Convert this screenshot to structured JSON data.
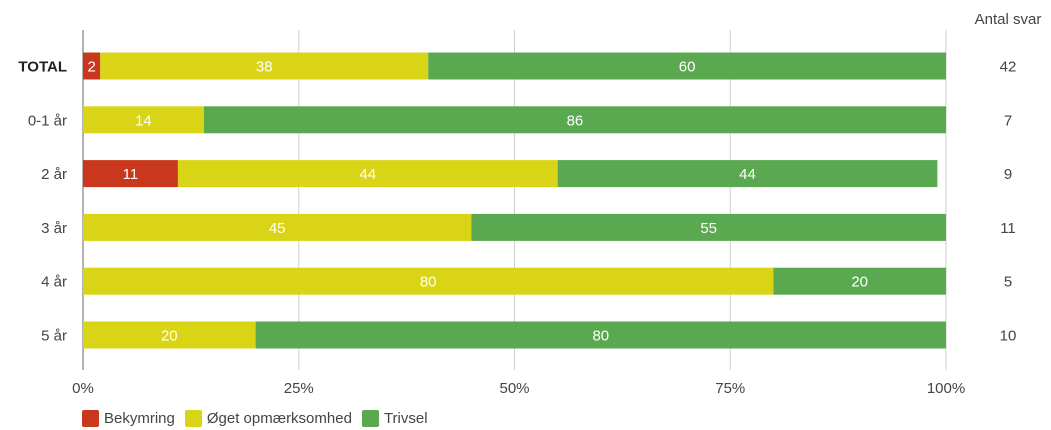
{
  "chart_data": {
    "type": "bar",
    "orientation": "horizontal",
    "stacked": true,
    "categories": [
      "TOTAL",
      "0-1 år",
      "2 år",
      "3 år",
      "4 år",
      "5 år"
    ],
    "series": [
      {
        "name": "Bekymring",
        "color": "#c9381c",
        "values": [
          2,
          0,
          11,
          0,
          0,
          0
        ]
      },
      {
        "name": "Øget opmærksomhed",
        "color": "#d9d516",
        "values": [
          38,
          14,
          44,
          45,
          80,
          20
        ]
      },
      {
        "name": "Trivsel",
        "color": "#5aa84f",
        "values": [
          60,
          86,
          44,
          55,
          20,
          80
        ]
      }
    ],
    "x_ticks": [
      "0%",
      "25%",
      "50%",
      "75%",
      "100%"
    ],
    "xlim": [
      0,
      100
    ],
    "counts_header": "Antal svar",
    "counts": [
      "42",
      "7",
      "9",
      "11",
      "5",
      "10"
    ],
    "grid": true,
    "legend_position": "bottom-left"
  }
}
